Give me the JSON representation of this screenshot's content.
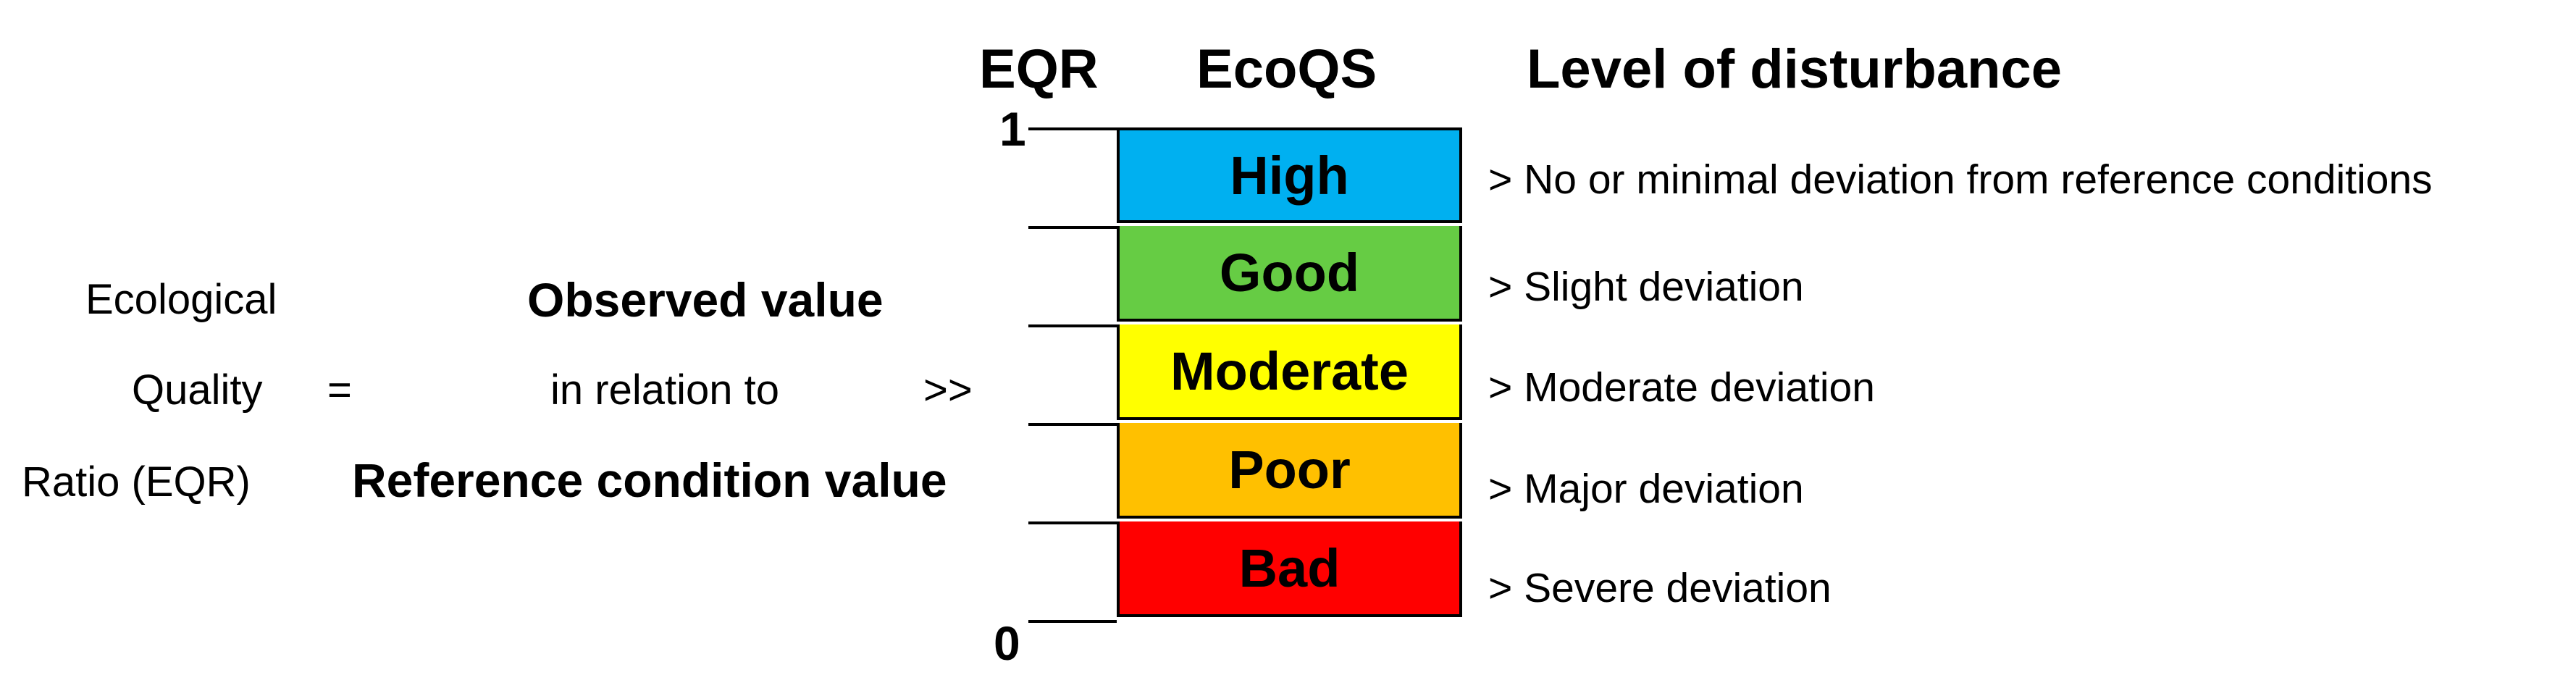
{
  "headers": {
    "eqr": "EQR",
    "ecoqs": "EcoQS",
    "disturbance": "Level of disturbance"
  },
  "axis": {
    "top": "1",
    "bottom": "0"
  },
  "formula": {
    "lhs_line1": "Ecological",
    "lhs_line2": "Quality",
    "lhs_line3": "Ratio (EQR)",
    "equals": "=",
    "numerator": "Observed value",
    "relation": "in relation to",
    "denominator": "Reference condition value",
    "arrow": ">>"
  },
  "classes": [
    {
      "label": "High",
      "color": "#00b0f0",
      "description": "> No or minimal deviation from reference conditions"
    },
    {
      "label": "Good",
      "color": "#66cc44",
      "description": "> Slight deviation"
    },
    {
      "label": "Moderate",
      "color": "#ffff00",
      "description": "> Moderate deviation"
    },
    {
      "label": "Poor",
      "color": "#ffc000",
      "description": "> Major deviation"
    },
    {
      "label": "Bad",
      "color": "#ff0000",
      "description": "> Severe deviation"
    }
  ]
}
